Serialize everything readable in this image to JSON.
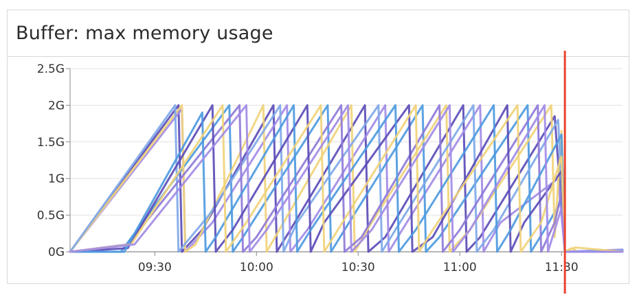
{
  "panel": {
    "title": "Buffer: max memory usage"
  },
  "colors": {
    "series": [
      "#5b4db7",
      "#a28be6",
      "#4d9ae0",
      "#f0d27a",
      "#7fa8e8",
      "#8f7ad8"
    ],
    "marker": "#e8432e",
    "grid": "#e2e2e2",
    "axis": "#8a8a8a"
  },
  "chart_data": {
    "type": "line",
    "title": "Buffer: max memory usage",
    "xlabel": "",
    "ylabel": "",
    "x_unit": "time",
    "xlim": [
      "09:05",
      "11:48"
    ],
    "ylim": [
      0,
      2.5
    ],
    "y_ticks": [
      {
        "value": 0,
        "label": "0G"
      },
      {
        "value": 0.5,
        "label": "0.5G"
      },
      {
        "value": 1,
        "label": "1G"
      },
      {
        "value": 1.5,
        "label": "1.5G"
      },
      {
        "value": 2,
        "label": "2G"
      },
      {
        "value": 2.5,
        "label": "2.5G"
      }
    ],
    "x_ticks": [
      {
        "value": "09:30",
        "label": "09:30"
      },
      {
        "value": "10:00",
        "label": "10:00"
      },
      {
        "value": "10:30",
        "label": "10:30"
      },
      {
        "value": "11:00",
        "label": "11:00"
      },
      {
        "value": "11:30",
        "label": "11:30"
      }
    ],
    "grid": true,
    "legend": "none",
    "marker_line": {
      "x": "11:31"
    },
    "series": [
      {
        "color_index": 0,
        "start": "09:05",
        "cycles": [
          [
            "09:05",
            0
          ],
          [
            "09:37",
            2.0
          ],
          [
            "09:38",
            0
          ],
          [
            "09:44",
            0.3
          ],
          [
            "10:05",
            2.0
          ],
          [
            "10:06",
            0
          ],
          [
            "10:10",
            0.3
          ],
          [
            "10:32",
            2.0
          ],
          [
            "10:33",
            0
          ],
          [
            "10:38",
            0.2
          ],
          [
            "11:01",
            2.0
          ],
          [
            "11:02",
            0
          ],
          [
            "11:06",
            0.2
          ],
          [
            "11:28",
            1.85
          ],
          [
            "11:31",
            0
          ],
          [
            "11:48",
            0.02
          ]
        ]
      },
      {
        "color_index": 1,
        "start": "09:05",
        "cycles": [
          [
            "09:05",
            0
          ],
          [
            "09:38",
            1.95
          ],
          [
            "09:39",
            0
          ],
          [
            "09:47",
            0.4
          ],
          [
            "10:09",
            2.0
          ],
          [
            "10:10",
            0
          ],
          [
            "10:15",
            0.3
          ],
          [
            "10:38",
            2.0
          ],
          [
            "10:39",
            0
          ],
          [
            "10:43",
            0.3
          ],
          [
            "11:06",
            2.0
          ],
          [
            "11:07",
            0
          ],
          [
            "11:12",
            0.4
          ],
          [
            "11:29",
            1.0
          ],
          [
            "11:31",
            0
          ],
          [
            "11:48",
            0.03
          ]
        ]
      },
      {
        "color_index": 2,
        "start": "09:05",
        "cycles": [
          [
            "09:05",
            0
          ],
          [
            "09:20",
            0
          ],
          [
            "09:52",
            2.0
          ],
          [
            "09:53",
            0
          ],
          [
            "09:56",
            0.2
          ],
          [
            "10:21",
            2.0
          ],
          [
            "10:22",
            0
          ],
          [
            "10:26",
            0.3
          ],
          [
            "10:49",
            2.0
          ],
          [
            "10:50",
            0
          ],
          [
            "10:54",
            0.2
          ],
          [
            "11:20",
            2.0
          ],
          [
            "11:21",
            0
          ],
          [
            "11:25",
            0.3
          ],
          [
            "11:30",
            0.7
          ],
          [
            "11:31",
            0
          ],
          [
            "11:48",
            0.0
          ]
        ]
      },
      {
        "color_index": 3,
        "start": "09:05",
        "cycles": [
          [
            "09:05",
            0
          ],
          [
            "09:38",
            2.0
          ],
          [
            "09:39",
            0
          ],
          [
            "09:42",
            0.1
          ],
          [
            "10:02",
            2.0
          ],
          [
            "10:03",
            0
          ],
          [
            "10:08",
            0.4
          ],
          [
            "10:28",
            2.0
          ],
          [
            "10:29",
            0
          ],
          [
            "10:34",
            0.4
          ],
          [
            "10:56",
            2.0
          ],
          [
            "10:57",
            0
          ],
          [
            "11:03",
            0.3
          ],
          [
            "11:27",
            2.0
          ],
          [
            "11:28",
            0.2
          ],
          [
            "11:30",
            1.65
          ],
          [
            "11:31",
            0
          ],
          [
            "11:33",
            0.05
          ],
          [
            "11:35",
            0.0
          ],
          [
            "11:48",
            0.0
          ]
        ]
      },
      {
        "color_index": 4,
        "start": "09:05",
        "cycles": [
          [
            "09:05",
            0
          ],
          [
            "09:36",
            2.0
          ],
          [
            "09:37",
            0
          ],
          [
            "09:46",
            0.5
          ],
          [
            "10:07",
            2.0
          ],
          [
            "10:08",
            0
          ],
          [
            "10:12",
            0.4
          ],
          [
            "10:36",
            2.0
          ],
          [
            "10:37",
            0
          ],
          [
            "10:41",
            0.3
          ],
          [
            "11:04",
            2.0
          ],
          [
            "11:05",
            0
          ],
          [
            "11:10",
            0.3
          ],
          [
            "11:29",
            1.8
          ],
          [
            "11:31",
            0
          ],
          [
            "11:48",
            0.02
          ]
        ]
      },
      {
        "color_index": 5,
        "start": "09:05",
        "cycles": [
          [
            "09:05",
            0
          ],
          [
            "09:22",
            0.1
          ],
          [
            "09:55",
            2.0
          ],
          [
            "09:56",
            0
          ],
          [
            "10:00",
            0.2
          ],
          [
            "10:25",
            2.0
          ],
          [
            "10:26",
            0
          ],
          [
            "10:31",
            0.2
          ],
          [
            "10:54",
            2.0
          ],
          [
            "10:55",
            0
          ],
          [
            "11:00",
            0.3
          ],
          [
            "11:23",
            2.0
          ],
          [
            "11:24",
            0
          ],
          [
            "11:28",
            0.4
          ],
          [
            "11:30",
            0.8
          ],
          [
            "11:31",
            0
          ],
          [
            "11:48",
            0.0
          ]
        ]
      },
      {
        "color_index": 0,
        "start": "09:05",
        "cycles": [
          [
            "09:05",
            0
          ],
          [
            "09:22",
            0.05
          ],
          [
            "09:47",
            2.0
          ],
          [
            "09:48",
            0
          ],
          [
            "09:53",
            0.3
          ],
          [
            "10:15",
            2.0
          ],
          [
            "10:16",
            0
          ],
          [
            "10:20",
            0.4
          ],
          [
            "10:45",
            2.0
          ],
          [
            "10:46",
            0
          ],
          [
            "10:52",
            0.2
          ],
          [
            "11:14",
            2.0
          ],
          [
            "11:15",
            0
          ],
          [
            "11:19",
            0.4
          ],
          [
            "11:30",
            1.1
          ],
          [
            "11:31",
            0
          ],
          [
            "11:48",
            0.0
          ]
        ]
      },
      {
        "color_index": 2,
        "start": "09:05",
        "cycles": [
          [
            "09:05",
            0
          ],
          [
            "09:21",
            0.0
          ],
          [
            "09:44",
            1.9
          ],
          [
            "09:45",
            0
          ],
          [
            "09:48",
            0.2
          ],
          [
            "10:11",
            2.0
          ],
          [
            "10:12",
            0
          ],
          [
            "10:16",
            0.3
          ],
          [
            "10:41",
            2.0
          ],
          [
            "10:42",
            0
          ],
          [
            "10:47",
            0.3
          ],
          [
            "11:10",
            2.0
          ],
          [
            "11:11",
            0
          ],
          [
            "11:15",
            0.3
          ],
          [
            "11:30",
            1.6
          ],
          [
            "11:31",
            0
          ],
          [
            "11:48",
            0.0
          ]
        ]
      },
      {
        "color_index": 3,
        "start": "09:05",
        "cycles": [
          [
            "09:05",
            0
          ],
          [
            "09:23",
            0.1
          ],
          [
            "09:50",
            2.0
          ],
          [
            "09:51",
            0
          ],
          [
            "09:57",
            0.4
          ],
          [
            "10:19",
            2.0
          ],
          [
            "10:20",
            0
          ],
          [
            "10:24",
            0.3
          ],
          [
            "10:47",
            2.0
          ],
          [
            "10:48",
            0
          ],
          [
            "10:52",
            0.3
          ],
          [
            "11:17",
            2.0
          ],
          [
            "11:18",
            0
          ],
          [
            "11:24",
            0.4
          ],
          [
            "11:30",
            1.3
          ],
          [
            "11:31",
            0
          ],
          [
            "11:34",
            0.06
          ],
          [
            "11:48",
            0.0
          ]
        ]
      },
      {
        "color_index": 1,
        "start": "09:05",
        "cycles": [
          [
            "09:05",
            0
          ],
          [
            "09:24",
            0.1
          ],
          [
            "09:57",
            2.0
          ],
          [
            "09:58",
            0
          ],
          [
            "10:03",
            0.3
          ],
          [
            "10:27",
            2.0
          ],
          [
            "10:28",
            0
          ],
          [
            "10:34",
            0.3
          ],
          [
            "10:57",
            2.0
          ],
          [
            "10:58",
            0
          ],
          [
            "11:03",
            0.3
          ],
          [
            "11:25",
            2.0
          ],
          [
            "11:26",
            0
          ],
          [
            "11:30",
            0.6
          ],
          [
            "11:31",
            0
          ],
          [
            "11:48",
            0.0
          ]
        ]
      }
    ]
  }
}
